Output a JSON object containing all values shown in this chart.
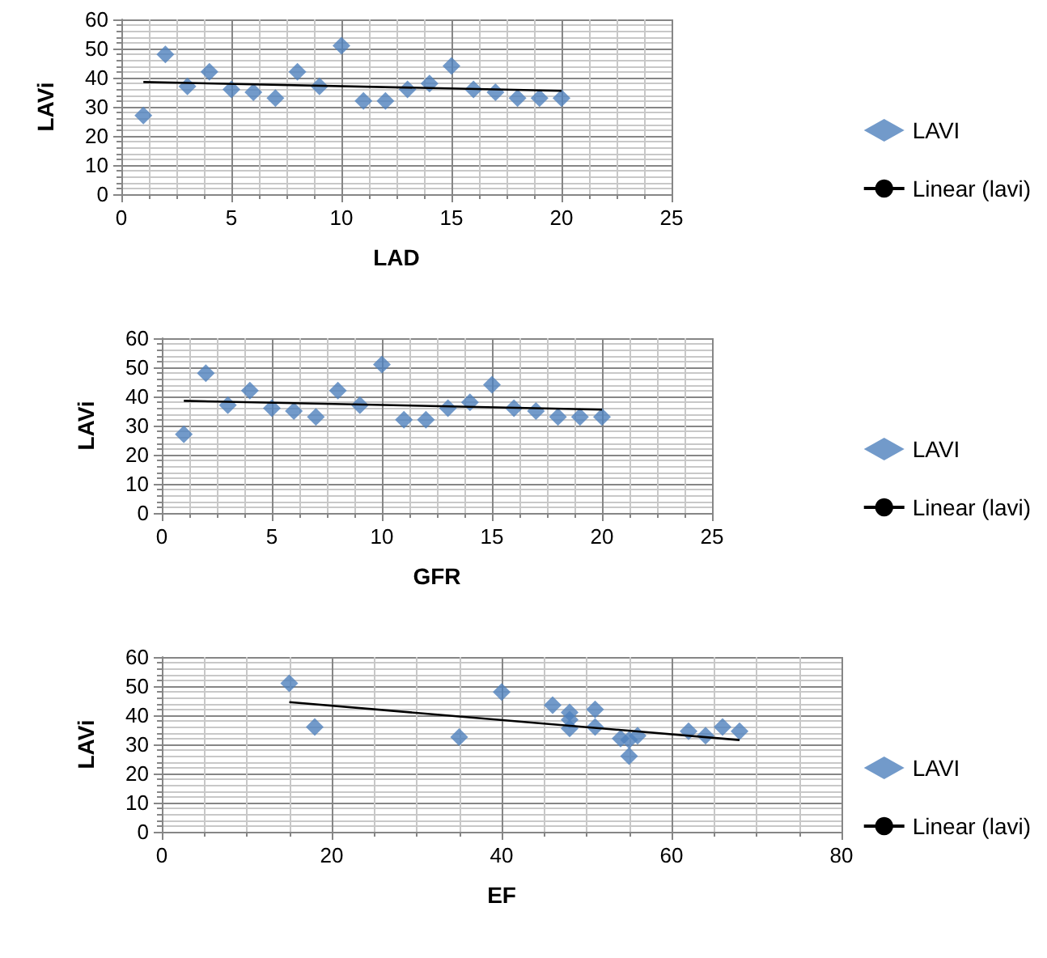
{
  "chart_data": [
    {
      "type": "scatter",
      "xlabel": "LAD",
      "ylabel": "LAVi",
      "xlim": [
        0,
        25
      ],
      "xticks": [
        0,
        5,
        10,
        15,
        20,
        25
      ],
      "ylim": [
        0,
        60
      ],
      "yticks": [
        0,
        10,
        20,
        30,
        40,
        50,
        60
      ],
      "grid": true,
      "legend": "right",
      "marker": "diamond",
      "series": [
        {
          "name": "LAVI",
          "color": "#4f81bd",
          "x": [
            1,
            2,
            3,
            4,
            5,
            6,
            7,
            8,
            9,
            10,
            11,
            12,
            13,
            14,
            15,
            16,
            17,
            18,
            19,
            20
          ],
          "values": [
            27,
            48,
            37,
            42,
            36,
            35,
            33,
            42,
            37,
            51,
            32,
            32,
            36,
            38,
            44,
            36,
            35,
            33,
            33,
            33
          ]
        },
        {
          "name": "Linear (lavi)",
          "type": "line",
          "color": "#000000",
          "marker": "none",
          "x": [
            1,
            20
          ],
          "values": [
            38.5,
            35.5
          ]
        }
      ]
    },
    {
      "type": "scatter",
      "xlabel": "GFR",
      "ylabel": "LAVi",
      "xlim": [
        0,
        25
      ],
      "xticks": [
        0,
        5,
        10,
        15,
        20,
        25
      ],
      "ylim": [
        0,
        60
      ],
      "yticks": [
        0,
        10,
        20,
        30,
        40,
        50,
        60
      ],
      "grid": true,
      "legend": "right",
      "marker": "diamond",
      "series": [
        {
          "name": "LAVI",
          "color": "#4f81bd",
          "x": [
            1,
            2,
            3,
            4,
            5,
            6,
            7,
            8,
            9,
            10,
            11,
            12,
            13,
            14,
            15,
            16,
            17,
            18,
            19,
            20
          ],
          "values": [
            27,
            48,
            37,
            42,
            36,
            35,
            33,
            42,
            37,
            51,
            32,
            32,
            36,
            38,
            44,
            36,
            35,
            33,
            33,
            33
          ]
        },
        {
          "name": "Linear (lavi)",
          "type": "line",
          "color": "#000000",
          "marker": "none",
          "x": [
            1,
            20
          ],
          "values": [
            38.5,
            35.5
          ]
        }
      ]
    },
    {
      "type": "scatter",
      "xlabel": "EF",
      "ylabel": "LAVi",
      "xlim": [
        0,
        80
      ],
      "xticks": [
        0,
        20,
        40,
        60,
        80
      ],
      "ylim": [
        0,
        60
      ],
      "yticks": [
        0,
        10,
        20,
        30,
        40,
        50,
        60
      ],
      "grid": true,
      "legend": "right",
      "marker": "diamond",
      "series": [
        {
          "name": "LAVI",
          "color": "#4f81bd",
          "x": [
            15,
            18,
            35,
            40,
            46,
            48,
            48,
            48,
            51,
            51,
            54,
            55,
            55,
            56,
            62,
            64,
            66,
            68
          ],
          "values": [
            51,
            36,
            32.5,
            48,
            43.5,
            41,
            38.5,
            35.5,
            42,
            36,
            32,
            26,
            31.5,
            33,
            34.5,
            33,
            36,
            34.5
          ]
        },
        {
          "name": "Linear (lavi)",
          "type": "line",
          "color": "#000000",
          "marker": "none",
          "x": [
            15,
            68
          ],
          "values": [
            44.5,
            31.5
          ]
        }
      ]
    }
  ]
}
